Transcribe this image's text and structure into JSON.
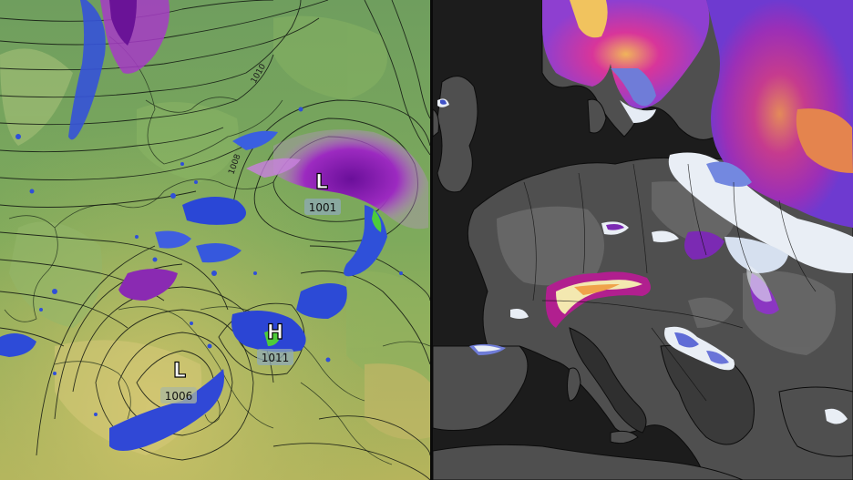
{
  "left_panel": {
    "pressure_centers": [
      {
        "type": "L",
        "value": "1001"
      },
      {
        "type": "H",
        "value": "1011"
      },
      {
        "type": "L",
        "value": "1006"
      }
    ],
    "isobar_labels": [
      "1010",
      "1008"
    ]
  },
  "colors": {
    "land_green": "#7aa75a",
    "sea_green": "#6e9a63",
    "precip_blue": "#2d4bd8",
    "precip_purple": "#8a1fb0",
    "right_sea": "#1b1b1b",
    "right_land": "#5a5a5a",
    "snow_white": "#e9eef5",
    "snow_magenta": "#b5208d"
  }
}
